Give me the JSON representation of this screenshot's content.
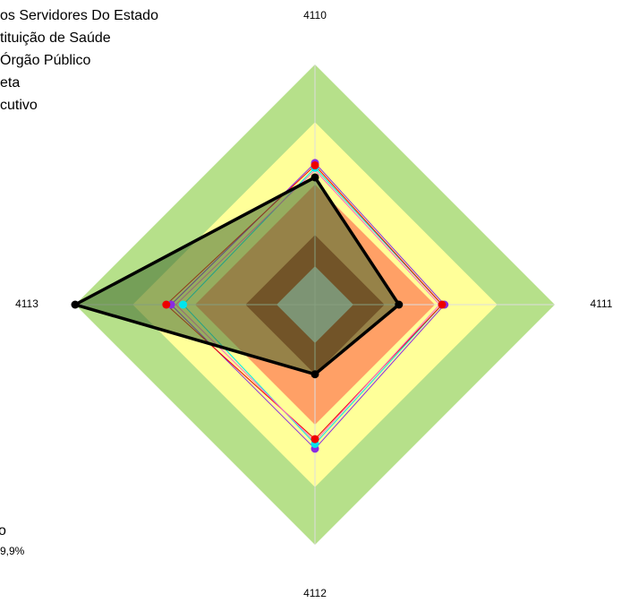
{
  "chart_data": {
    "type": "radar",
    "categories": [
      "4110",
      "4111",
      "4112",
      "4113"
    ],
    "rlim": [
      0,
      100
    ],
    "bands": [
      {
        "value": 100,
        "color": "#b6e08a"
      },
      {
        "value": 76,
        "color": "#ffff99"
      },
      {
        "value": 50,
        "color": "#ffa066"
      },
      {
        "value": 29,
        "color": "#b03a20"
      },
      {
        "value": 16,
        "color": "#c8c8c8"
      }
    ],
    "legend_texts": [
      "os Servidores Do Estado",
      "tituição de Saúde",
      "Órgão Público",
      "eta",
      "cutivo"
    ],
    "series": [
      {
        "name": "os Servidores Do Estado",
        "color": "#8a2be2",
        "values": [
          59,
          54,
          60,
          60
        ]
      },
      {
        "name": "tituição de Saúde",
        "color": "#00e5ee",
        "values": [
          57,
          53,
          58,
          55
        ]
      },
      {
        "name": "Órgão Público",
        "color": "#ee0000",
        "values": [
          58,
          53,
          56,
          62
        ]
      },
      {
        "name": "eta",
        "color": "#ff66cc",
        "values": [
          56,
          52,
          57,
          58
        ]
      },
      {
        "name": "cutivo",
        "color": "#000000",
        "values": [
          53,
          35,
          29,
          100
        ],
        "fill": "#3f6a30"
      }
    ],
    "annotations": [
      "o",
      "9,9%"
    ]
  }
}
